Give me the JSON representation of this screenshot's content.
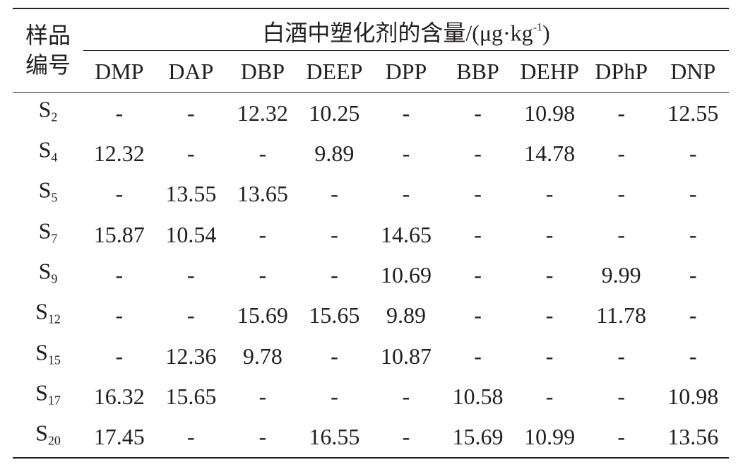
{
  "table": {
    "row_header": [
      "样品",
      "编号"
    ],
    "group_header": [
      "白酒中塑化剂的含量/(μg·kg",
      "-1",
      ")"
    ],
    "columns": [
      "DMP",
      "DAP",
      "DBP",
      "DEEP",
      "DPP",
      "BBP",
      "DEHP",
      "DPhP",
      "DNP"
    ],
    "rows": [
      {
        "sample": [
          "S",
          "2"
        ],
        "values": [
          "-",
          "-",
          "12.32",
          "10.25",
          "-",
          "-",
          "10.98",
          "-",
          "12.55"
        ]
      },
      {
        "sample": [
          "S",
          "4"
        ],
        "values": [
          "12.32",
          "-",
          "-",
          "9.89",
          "-",
          "-",
          "14.78",
          "-",
          "-"
        ]
      },
      {
        "sample": [
          "S",
          "5"
        ],
        "values": [
          "-",
          "13.55",
          "13.65",
          "-",
          "-",
          "-",
          "-",
          "-",
          "-"
        ]
      },
      {
        "sample": [
          "S",
          "7"
        ],
        "values": [
          "15.87",
          "10.54",
          "-",
          "-",
          "14.65",
          "-",
          "-",
          "-",
          "-"
        ]
      },
      {
        "sample": [
          "S",
          "9"
        ],
        "values": [
          "-",
          "-",
          "-",
          "-",
          "10.69",
          "-",
          "-",
          "9.99",
          "-"
        ]
      },
      {
        "sample": [
          "S",
          "12"
        ],
        "values": [
          "-",
          "-",
          "15.69",
          "15.65",
          "9.89",
          "-",
          "-",
          "11.78",
          "-"
        ]
      },
      {
        "sample": [
          "S",
          "15"
        ],
        "values": [
          "-",
          "12.36",
          "9.78",
          "-",
          "10.87",
          "-",
          "-",
          "-",
          "-"
        ]
      },
      {
        "sample": [
          "S",
          "17"
        ],
        "values": [
          "16.32",
          "15.65",
          "-",
          "-",
          "-",
          "10.58",
          "-",
          "-",
          "10.98"
        ]
      },
      {
        "sample": [
          "S",
          "20"
        ],
        "values": [
          "17.45",
          "-",
          "-",
          "16.55",
          "-",
          "15.69",
          "10.99",
          "-",
          "13.56"
        ]
      }
    ]
  }
}
